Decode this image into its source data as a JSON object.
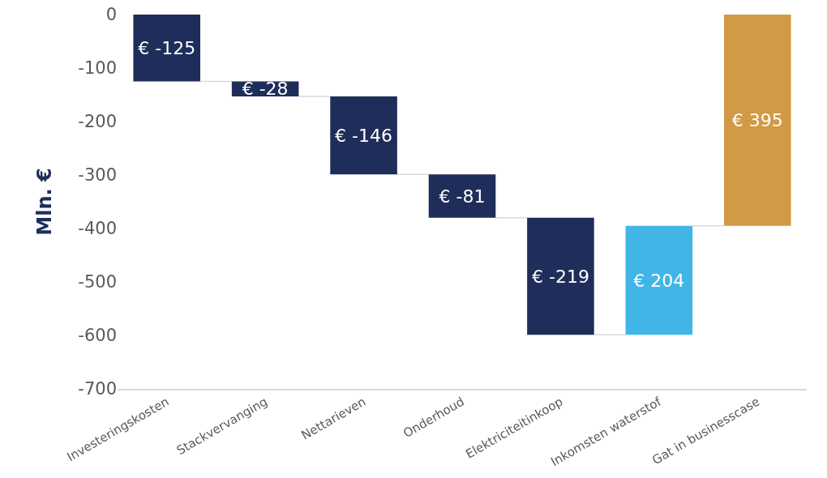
{
  "chart_data": {
    "type": "bar",
    "ylabel": "Mln. €",
    "categories": [
      "Investeringskosten",
      "Stackvervanging",
      "Nettarieven",
      "Onderhoud",
      "Elektriciteitinkoop",
      "Inkomsten waterstof",
      "Gat in businesscase"
    ],
    "values": [
      -125,
      -28,
      -146,
      -81,
      -219,
      204,
      395
    ],
    "base": [
      0,
      -125,
      -153,
      -299,
      -380,
      -599,
      -395
    ],
    "colors": [
      "#1f2d5a",
      "#1f2d5a",
      "#1f2d5a",
      "#1f2d5a",
      "#1f2d5a",
      "#41b6e6",
      "#d29a44"
    ],
    "value_labels": [
      "€ -125",
      "€ -28",
      "€ -146",
      "€ -81",
      "€ -219",
      "€ 204",
      "€ 395"
    ],
    "ylim": [
      -700,
      0
    ],
    "yticks": [
      -700,
      -600,
      -500,
      -400,
      -300,
      -200,
      -100,
      0
    ]
  }
}
